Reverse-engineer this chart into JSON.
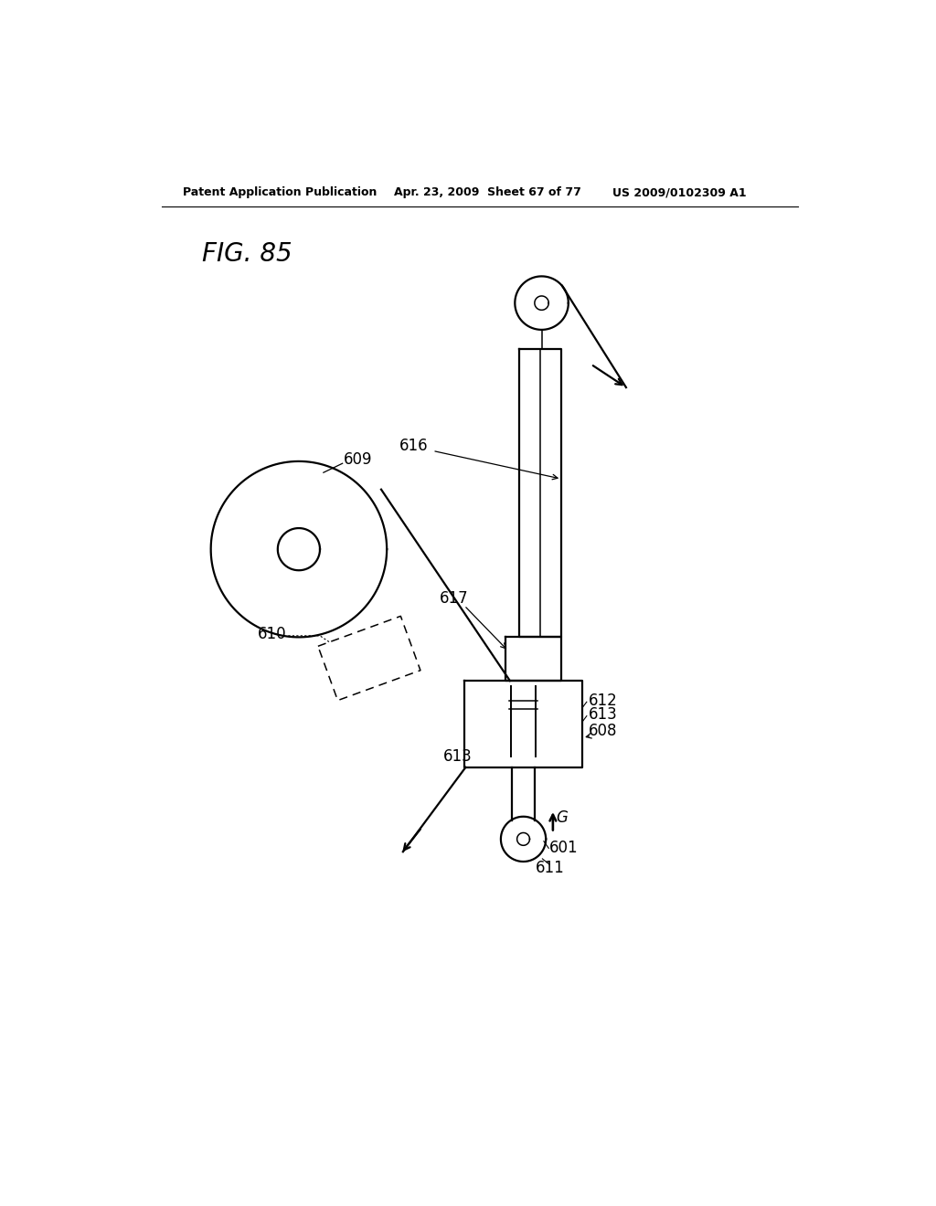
{
  "bg_color": "#ffffff",
  "header_left": "Patent Application Publication",
  "header_mid": "Apr. 23, 2009  Sheet 67 of 77",
  "header_right": "US 2009/0102309 A1",
  "fig_label": "FIG. 85",
  "lw": 1.6,
  "lw_thin": 1.1,
  "fs_label": 12,
  "fs_header": 9,
  "fs_fig": 20
}
